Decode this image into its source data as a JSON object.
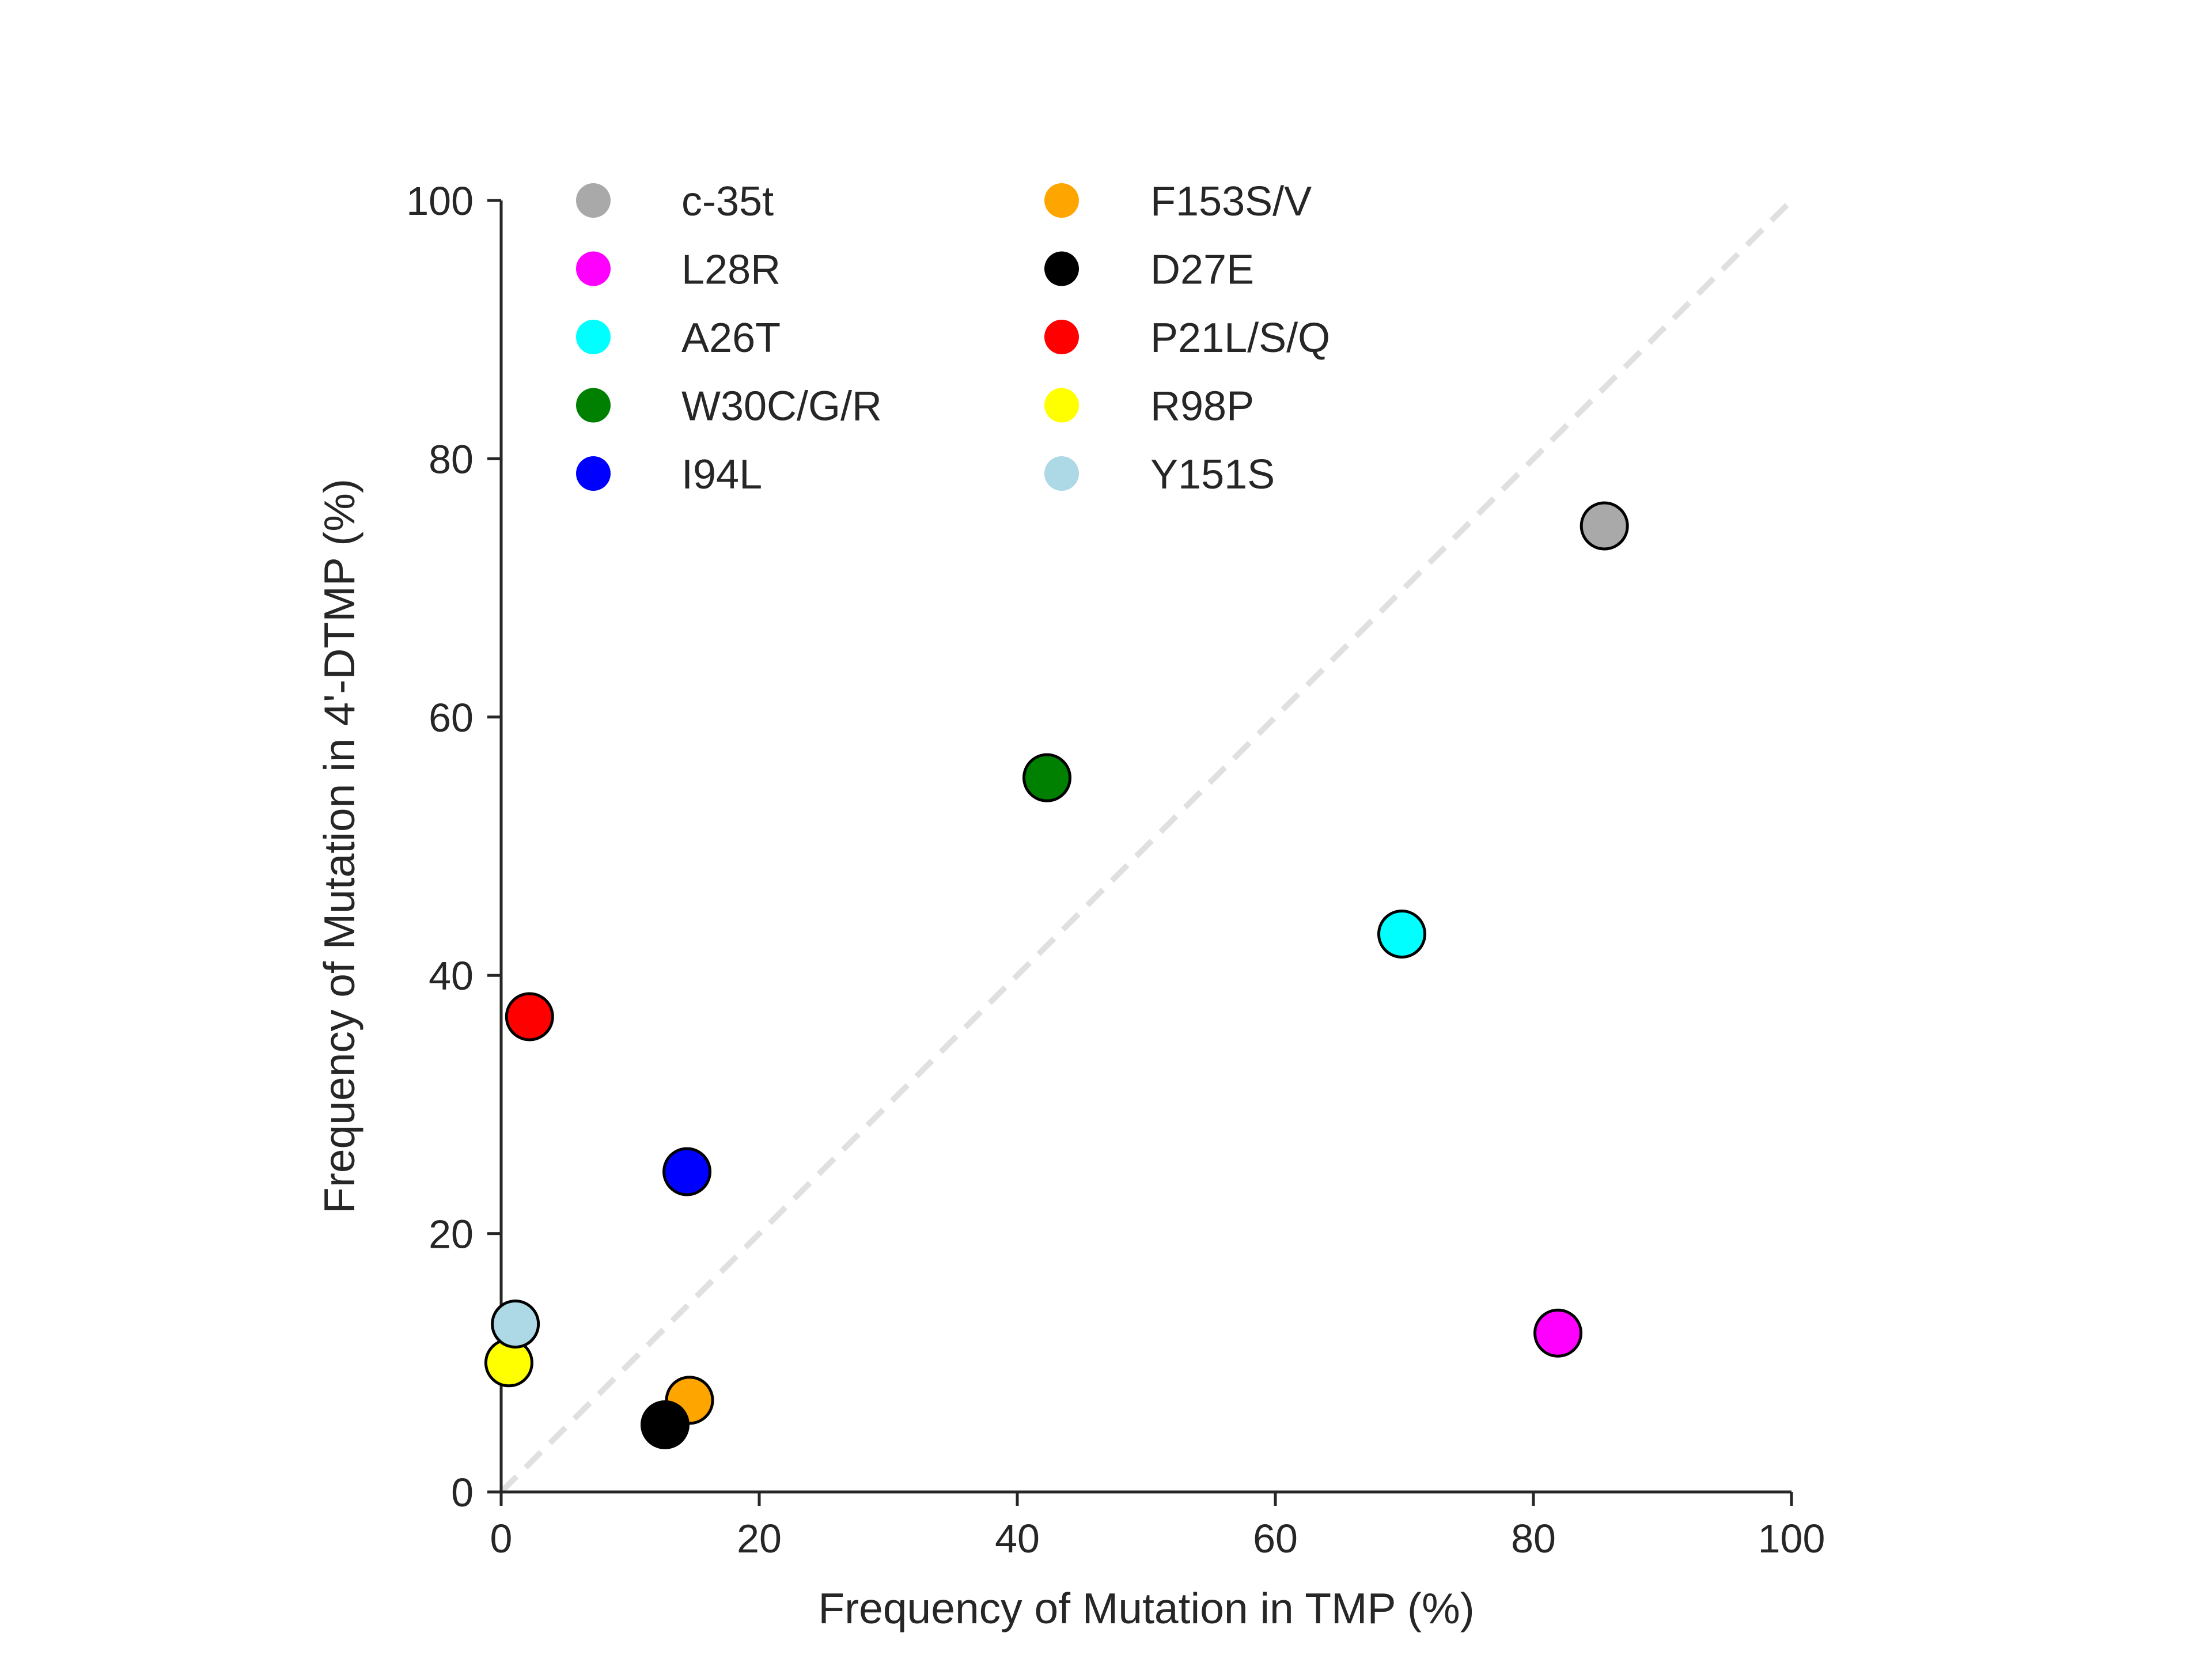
{
  "chart_data": {
    "type": "scatter",
    "xlabel": "Frequency of Mutation in TMP (%)",
    "ylabel": "Frequency of Mutation in 4'-DTMP (%)",
    "xlim": [
      0,
      100
    ],
    "ylim": [
      0,
      100
    ],
    "xticks": [
      "0",
      "20",
      "40",
      "60",
      "80",
      "100"
    ],
    "yticks": [
      "0",
      "20",
      "40",
      "60",
      "80",
      "100"
    ],
    "grid": false,
    "legend_position": "top-left",
    "reference_line": {
      "style": "dashed",
      "from": [
        0,
        0
      ],
      "to": [
        100,
        100
      ],
      "color": "#e0e0e0"
    },
    "series": [
      {
        "name": "c-35t",
        "color": "#a9a9a9",
        "x": 85.5,
        "y": 74.8
      },
      {
        "name": "L28R",
        "color": "#ff00ff",
        "x": 81.9,
        "y": 12.3
      },
      {
        "name": "A26T",
        "color": "#00ffff",
        "x": 69.8,
        "y": 43.2
      },
      {
        "name": "W30C/G/R",
        "color": "#008000",
        "x": 42.3,
        "y": 55.3
      },
      {
        "name": "I94L",
        "color": "#0000ff",
        "x": 14.4,
        "y": 24.8
      },
      {
        "name": "F153S/V",
        "color": "#ffa500",
        "x": 14.6,
        "y": 7.1
      },
      {
        "name": "D27E",
        "color": "#000000",
        "x": 12.7,
        "y": 5.2
      },
      {
        "name": "P21L/S/Q",
        "color": "#ff0000",
        "x": 2.2,
        "y": 36.8
      },
      {
        "name": "R98P",
        "color": "#ffff00",
        "x": 0.6,
        "y": 10.0
      },
      {
        "name": "Y151S",
        "color": "#add8e6",
        "x": 1.1,
        "y": 13.0
      }
    ]
  }
}
